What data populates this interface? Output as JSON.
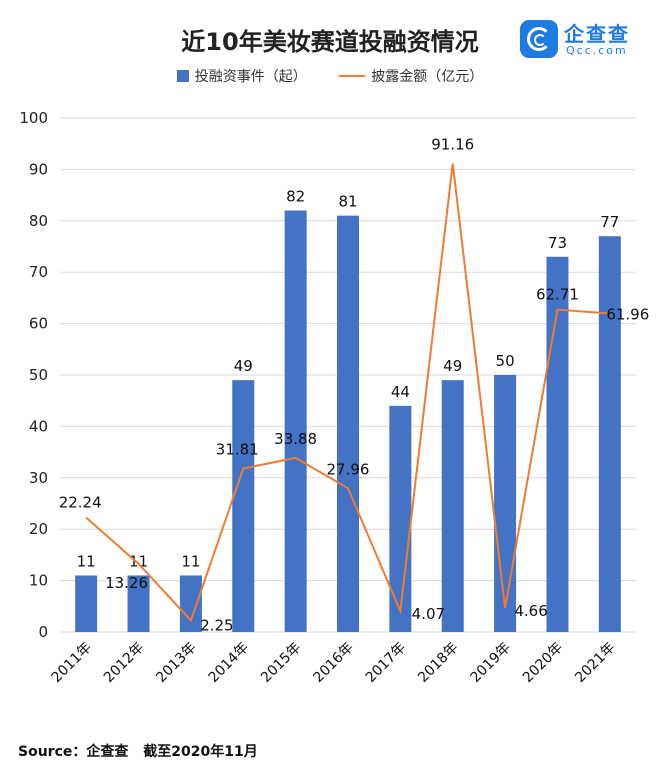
{
  "title": "近10年美妆赛道投融资情况",
  "brand": {
    "name_cn": "企查查",
    "name_en": "Qcc.com",
    "logo_icon": "qcc-logo-icon"
  },
  "source": {
    "label": "Source：企查查",
    "note": "截至2020年11月"
  },
  "colors": {
    "bars": "#4472c4",
    "line": "#ed7d31",
    "grid": "#d9d9d9"
  },
  "chart_data": {
    "type": "bar",
    "categories": [
      "2011年",
      "2012年",
      "2013年",
      "2014年",
      "2015年",
      "2016年",
      "2017年",
      "2018年",
      "2019年",
      "2020年",
      "2021年"
    ],
    "ylim": [
      0,
      100
    ],
    "yticks": [
      0,
      10,
      20,
      30,
      40,
      50,
      60,
      70,
      80,
      90,
      100
    ],
    "grid": true,
    "legend_position": "top",
    "series": [
      {
        "name": "投融资事件（起）",
        "type": "bar",
        "values": [
          11,
          11,
          11,
          49,
          82,
          81,
          44,
          49,
          50,
          73,
          77
        ]
      },
      {
        "name": "披露金额（亿元）",
        "type": "line",
        "values": [
          22.24,
          13.26,
          2.25,
          31.81,
          33.88,
          27.96,
          4.07,
          91.16,
          4.66,
          62.71,
          61.96
        ]
      }
    ]
  }
}
